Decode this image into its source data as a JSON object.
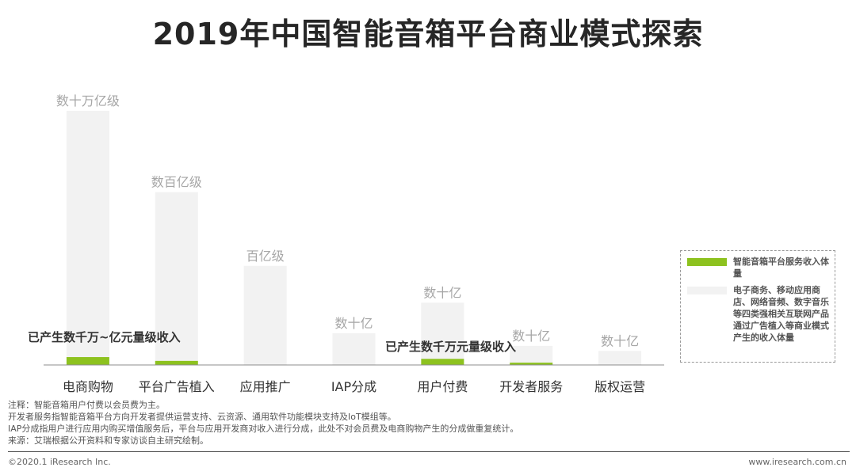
{
  "title": "2019年中国智能音箱平台商业模式探索",
  "chart_data": {
    "type": "bar",
    "categories": [
      "电商购物",
      "平台广告植入",
      "应用推广",
      "IAP分成",
      "用户付费",
      "开发者服务",
      "版权运营"
    ],
    "series": [
      {
        "name": "电子商务、移动应用商店、网络音频、数字音乐等四类强相关互联网产品通过广告植入等商业模式产生的收入体量",
        "values": [
          100,
          68,
          39,
          12.5,
          24.5,
          7.5,
          5.5
        ],
        "color": "#f2f2f2"
      },
      {
        "name": "智能音箱平台服务收入体量",
        "values": [
          3.1,
          1.6,
          0,
          0,
          2.4,
          0.9,
          0
        ],
        "color": "#8dc21f"
      }
    ],
    "bar_labels": [
      "数十万亿级",
      "数百亿级",
      "百亿级",
      "数十亿",
      "数十亿",
      "数十亿",
      "数十亿"
    ],
    "annotations": [
      "已产生数千万~亿元量级收入",
      "已产生数千万元量级收入"
    ],
    "ylim": [
      0,
      100
    ],
    "grid": false,
    "legend_position": "right"
  },
  "legend": [
    {
      "label": "智能音箱平台服务收入体量",
      "color": "#8dc21f"
    },
    {
      "label": "电子商务、移动应用商店、网络音频、数字音乐等四类强相关互联网产品通过广告植入等商业模式产生的收入体量",
      "color": "#f2f2f2"
    }
  ],
  "notes": [
    "注释：智能音箱用户付费以会员费为主。",
    "开发者服务指智能音箱平台方向开发者提供运营支持、云资源、通用软件功能模块支持及IoT模组等。",
    "IAP分成指用户进行应用内购买增值服务后，平台与应用开发商对收入进行分成，此处不对会员费及电商购物产生的分成做重复统计。",
    "来源：艾瑞根据公开资料和专家访谈自主研究绘制。"
  ],
  "footer": {
    "copyright": "©2020.1 iResearch Inc.",
    "website": "www.iresearch.com.cn"
  }
}
